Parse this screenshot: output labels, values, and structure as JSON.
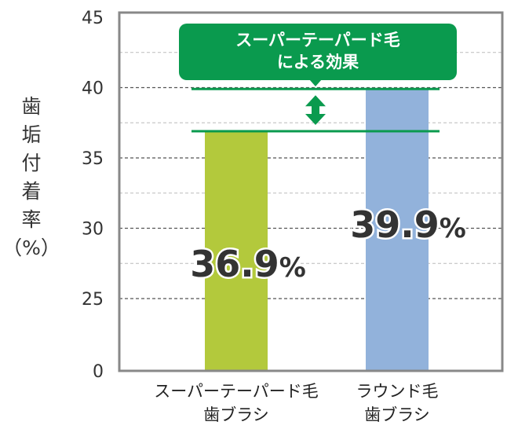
{
  "chart_data": {
    "type": "bar",
    "categories": [
      [
        "スーパーテーパード毛",
        "歯ブラシ"
      ],
      [
        "ラウンド毛",
        "歯ブラシ"
      ]
    ],
    "values": [
      36.9,
      39.9
    ],
    "value_labels": [
      "36.9",
      "39.9"
    ],
    "value_unit": "%",
    "colors": [
      "#b3c93c",
      "#92b2db"
    ],
    "ylabel": "歯垢付着率（%）",
    "ylabel_chars": [
      "歯",
      "垢",
      "付",
      "着",
      "率",
      "（%）"
    ],
    "yticks": [
      0,
      25,
      30,
      35,
      40,
      45
    ],
    "ylim": [
      0,
      45
    ],
    "axis_break": true,
    "grid": true,
    "callout": {
      "lines": [
        "スーパーテーパード毛",
        "による効果"
      ],
      "color": "#0a9a4e"
    }
  }
}
